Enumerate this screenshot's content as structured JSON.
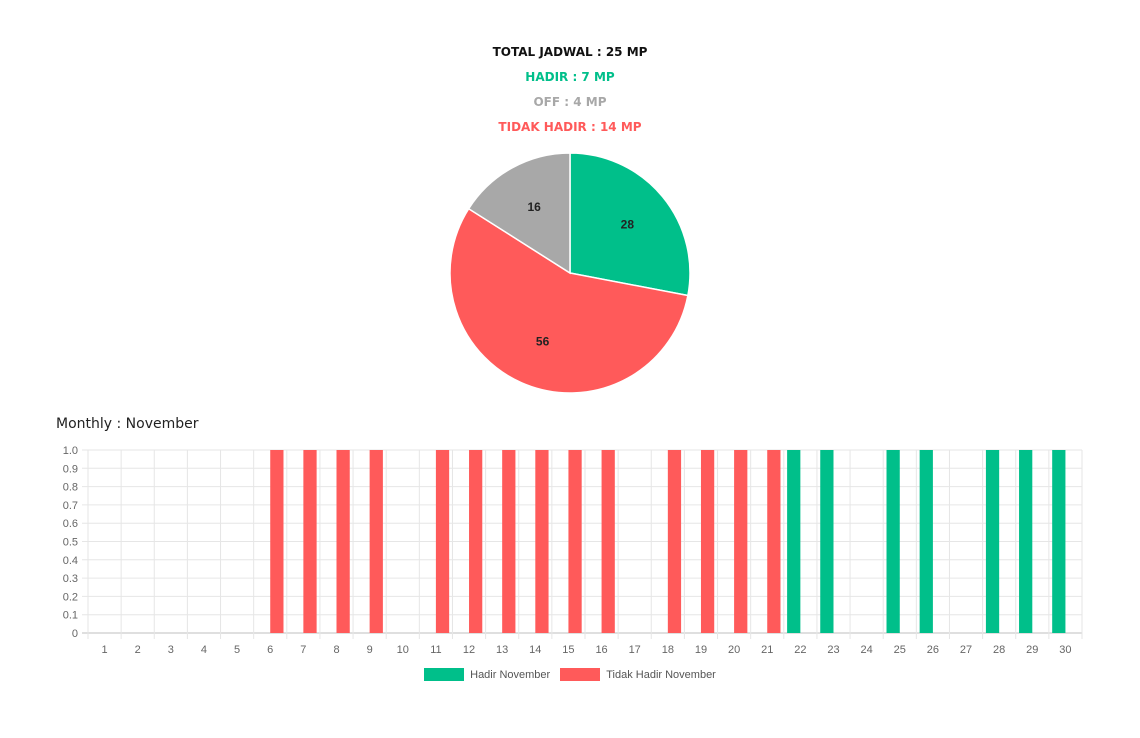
{
  "summary": {
    "total": "TOTAL JADWAL : 25 MP",
    "hadir": "HADIR : 7 MP",
    "off": "OFF : 4 MP",
    "tidak_hadir": "TIDAK HADIR : 14 MP"
  },
  "colors": {
    "total": "#111111",
    "hadir": "#00BF8A",
    "off": "#A8A8A8",
    "tidak_hadir": "#FF5A5A"
  },
  "monthly_title": "Monthly : November",
  "chart_data": [
    {
      "type": "pie",
      "slices": [
        {
          "label": "28",
          "value": 28,
          "color": "#00BF8A"
        },
        {
          "label": "56",
          "value": 56,
          "color": "#FF5A5A"
        },
        {
          "label": "16",
          "value": 16,
          "color": "#A8A8A8"
        }
      ]
    },
    {
      "type": "bar",
      "categories": [
        "1",
        "2",
        "3",
        "4",
        "5",
        "6",
        "7",
        "8",
        "9",
        "10",
        "11",
        "12",
        "13",
        "14",
        "15",
        "16",
        "17",
        "18",
        "19",
        "20",
        "21",
        "22",
        "23",
        "24",
        "25",
        "26",
        "27",
        "28",
        "29",
        "30"
      ],
      "ylim": [
        0,
        1.0
      ],
      "yticks": [
        "0",
        "0.1",
        "0.2",
        "0.3",
        "0.4",
        "0.5",
        "0.6",
        "0.7",
        "0.8",
        "0.9",
        "1.0"
      ],
      "grid": true,
      "legend_position": "bottom",
      "series": [
        {
          "name": "Hadir November",
          "color": "#00BF8A",
          "values": [
            0,
            0,
            0,
            0,
            0,
            0,
            0,
            0,
            0,
            0,
            0,
            0,
            0,
            0,
            0,
            0,
            0,
            0,
            0,
            0,
            0,
            1,
            1,
            0,
            1,
            1,
            0,
            1,
            1,
            1
          ]
        },
        {
          "name": "Tidak Hadir November",
          "color": "#FF5A5A",
          "values": [
            0,
            0,
            0,
            0,
            0,
            1,
            1,
            1,
            1,
            0,
            1,
            1,
            1,
            1,
            1,
            1,
            0,
            1,
            1,
            1,
            1,
            0,
            0,
            0,
            0,
            0,
            0,
            0,
            0,
            0
          ]
        }
      ]
    }
  ]
}
